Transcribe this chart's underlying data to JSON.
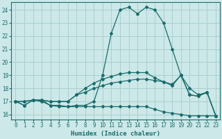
{
  "xlabel": "Humidex (Indice chaleur)",
  "bg_color": "#cce8e8",
  "grid_color": "#aacfcf",
  "line_color": "#1a6b6b",
  "hours": [
    0,
    1,
    2,
    3,
    4,
    5,
    6,
    7,
    8,
    9,
    10,
    11,
    12,
    13,
    14,
    15,
    16,
    17,
    18,
    19,
    20,
    21,
    22,
    23
  ],
  "line1": [
    17.0,
    16.7,
    17.1,
    17.0,
    16.7,
    16.7,
    16.6,
    16.7,
    16.7,
    17.0,
    19.0,
    22.2,
    24.0,
    24.2,
    23.7,
    24.2,
    24.0,
    23.0,
    21.0,
    19.0,
    18.0,
    17.5,
    17.7,
    15.9
  ],
  "line2": [
    17.0,
    16.7,
    17.1,
    17.1,
    16.7,
    16.6,
    16.6,
    16.6,
    16.6,
    16.6,
    16.6,
    16.6,
    16.6,
    16.6,
    16.6,
    16.6,
    16.4,
    16.2,
    16.1,
    16.0,
    15.9,
    15.9,
    15.9,
    15.9
  ],
  "line3": [
    17.0,
    17.0,
    17.1,
    17.1,
    17.0,
    17.0,
    17.0,
    17.5,
    17.7,
    18.0,
    18.2,
    18.4,
    18.5,
    18.6,
    18.7,
    18.7,
    18.6,
    18.5,
    18.3,
    19.0,
    17.5,
    17.4,
    17.7,
    15.9
  ],
  "line4": [
    17.0,
    17.0,
    17.1,
    17.1,
    17.0,
    17.0,
    17.0,
    17.5,
    18.0,
    18.4,
    18.7,
    18.9,
    19.1,
    19.2,
    19.2,
    19.2,
    18.8,
    18.5,
    18.2,
    19.0,
    17.5,
    17.4,
    17.7,
    15.9
  ],
  "ylim": [
    15.6,
    24.6
  ],
  "yticks": [
    16,
    17,
    18,
    19,
    20,
    21,
    22,
    23,
    24
  ],
  "xticks": [
    0,
    1,
    2,
    3,
    4,
    5,
    6,
    7,
    8,
    9,
    10,
    11,
    12,
    13,
    14,
    15,
    16,
    17,
    18,
    19,
    20,
    21,
    22,
    23
  ]
}
